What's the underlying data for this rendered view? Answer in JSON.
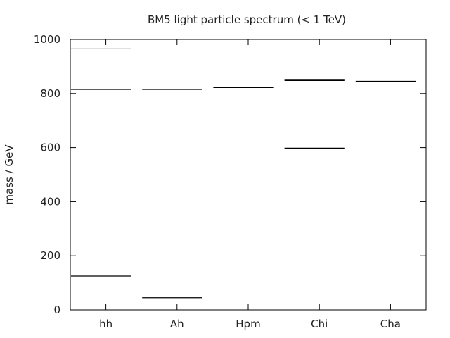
{
  "chart_data": {
    "type": "bar",
    "title": "BM5 light particle spectrum (< 1 TeV)",
    "xlabel": "",
    "ylabel": "mass / GeV",
    "ylim": [
      0,
      1000
    ],
    "yticks": [
      0,
      200,
      400,
      600,
      800,
      1000
    ],
    "categories": [
      "hh",
      "Ah",
      "Hpm",
      "Chi",
      "Cha"
    ],
    "levels": [
      [
        125,
        815,
        965
      ],
      [
        45,
        815
      ],
      [
        822
      ],
      [
        598,
        848,
        852
      ],
      [
        845
      ]
    ],
    "grid": false,
    "legend": "none"
  }
}
